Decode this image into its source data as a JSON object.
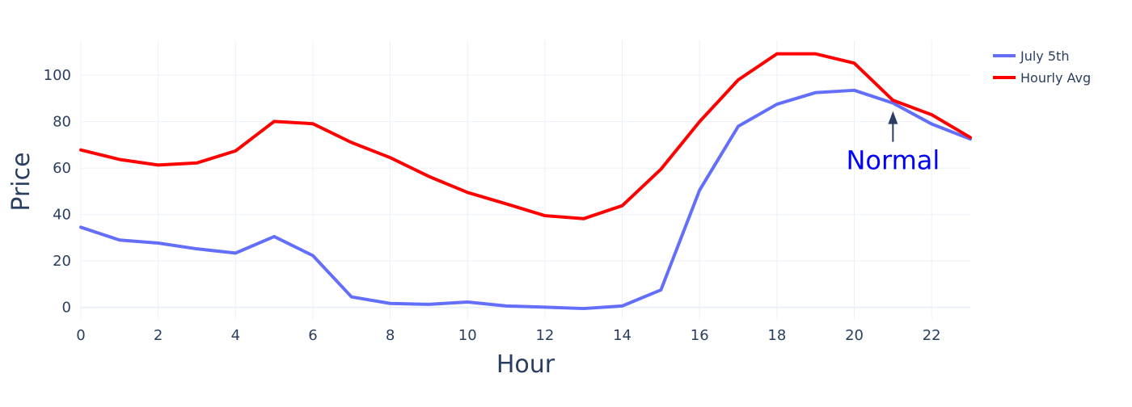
{
  "chart_data": {
    "type": "line",
    "xlabel": "Hour",
    "ylabel": "Price",
    "xlim": [
      0,
      23
    ],
    "ylim": [
      -5,
      115
    ],
    "xticks": [
      0,
      2,
      4,
      6,
      8,
      10,
      12,
      14,
      16,
      18,
      20,
      22
    ],
    "yticks": [
      0,
      20,
      40,
      60,
      80,
      100
    ],
    "grid": true,
    "legend_position": "top-right",
    "x": [
      0,
      1,
      2,
      3,
      4,
      5,
      6,
      7,
      8,
      9,
      10,
      11,
      12,
      13,
      14,
      15,
      16,
      17,
      18,
      19,
      20,
      21,
      22,
      23
    ],
    "series": [
      {
        "name": "July 5th",
        "color": "#636efa",
        "values": [
          34.5,
          29,
          27.7,
          25.2,
          23.4,
          30.5,
          22.3,
          4.5,
          1.7,
          1.3,
          2.3,
          0.6,
          0.1,
          -0.5,
          0.6,
          7.5,
          50.5,
          78,
          87.5,
          92.5,
          93.5,
          88,
          79,
          72.5
        ]
      },
      {
        "name": "Hourly Avg",
        "color": "#ff0000",
        "values": [
          67.8,
          63.7,
          61.3,
          62.2,
          67.4,
          80.1,
          79.1,
          71,
          64.5,
          56.4,
          49.5,
          44.6,
          39.5,
          38.2,
          43.8,
          59.5,
          80,
          98,
          109.2,
          109.2,
          105.2,
          89.2,
          83,
          73.2
        ]
      }
    ],
    "annotations": [
      {
        "text": "Normal",
        "x": 21,
        "y": 88,
        "color": "#0000ff",
        "arrow_color": "#2a3f5f"
      }
    ]
  }
}
